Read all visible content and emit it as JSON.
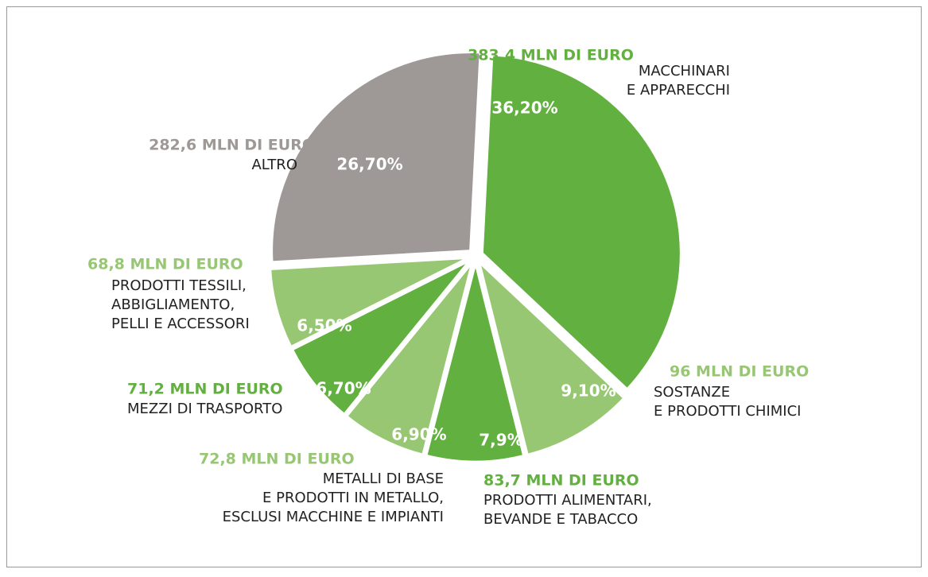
{
  "chart_data": {
    "type": "pie",
    "categories": [
      "MACCHINARI\nE APPARECCHI",
      "SOSTANZE\nE PRODOTTI CHIMICI",
      "PRODOTTI ALIMENTARI,\nBEVANDE E TABACCO",
      "METALLI DI BASE\nE PRODOTTI IN METALLO,\nESCLUSI MACCHINE E IMPIANTI",
      "MEZZI DI TRASPORTO",
      "PRODOTTI TESSILI,\nABBIGLIAMENTO,\nPELLI E ACCESSORI",
      "ALTRO"
    ],
    "amount_labels": [
      "383,4 MLN DI EURO",
      "96 MLN DI EURO",
      "83,7 MLN DI EURO",
      "72,8 MLN DI EURO",
      "71,2 MLN DI EURO",
      "68,8 MLN DI EURO",
      "282,6 MLN DI EURO"
    ],
    "values": [
      36.2,
      9.1,
      7.9,
      6.9,
      6.7,
      6.5,
      26.7
    ],
    "value_labels": [
      "36,20%",
      "9,10%",
      "7,9%",
      "6,90%",
      "6,70%",
      "6,50%",
      "26,70%"
    ],
    "colors": [
      "#62b03f",
      "#97c773",
      "#62b03f",
      "#97c773",
      "#62b03f",
      "#97c773",
      "#9e9896"
    ]
  }
}
